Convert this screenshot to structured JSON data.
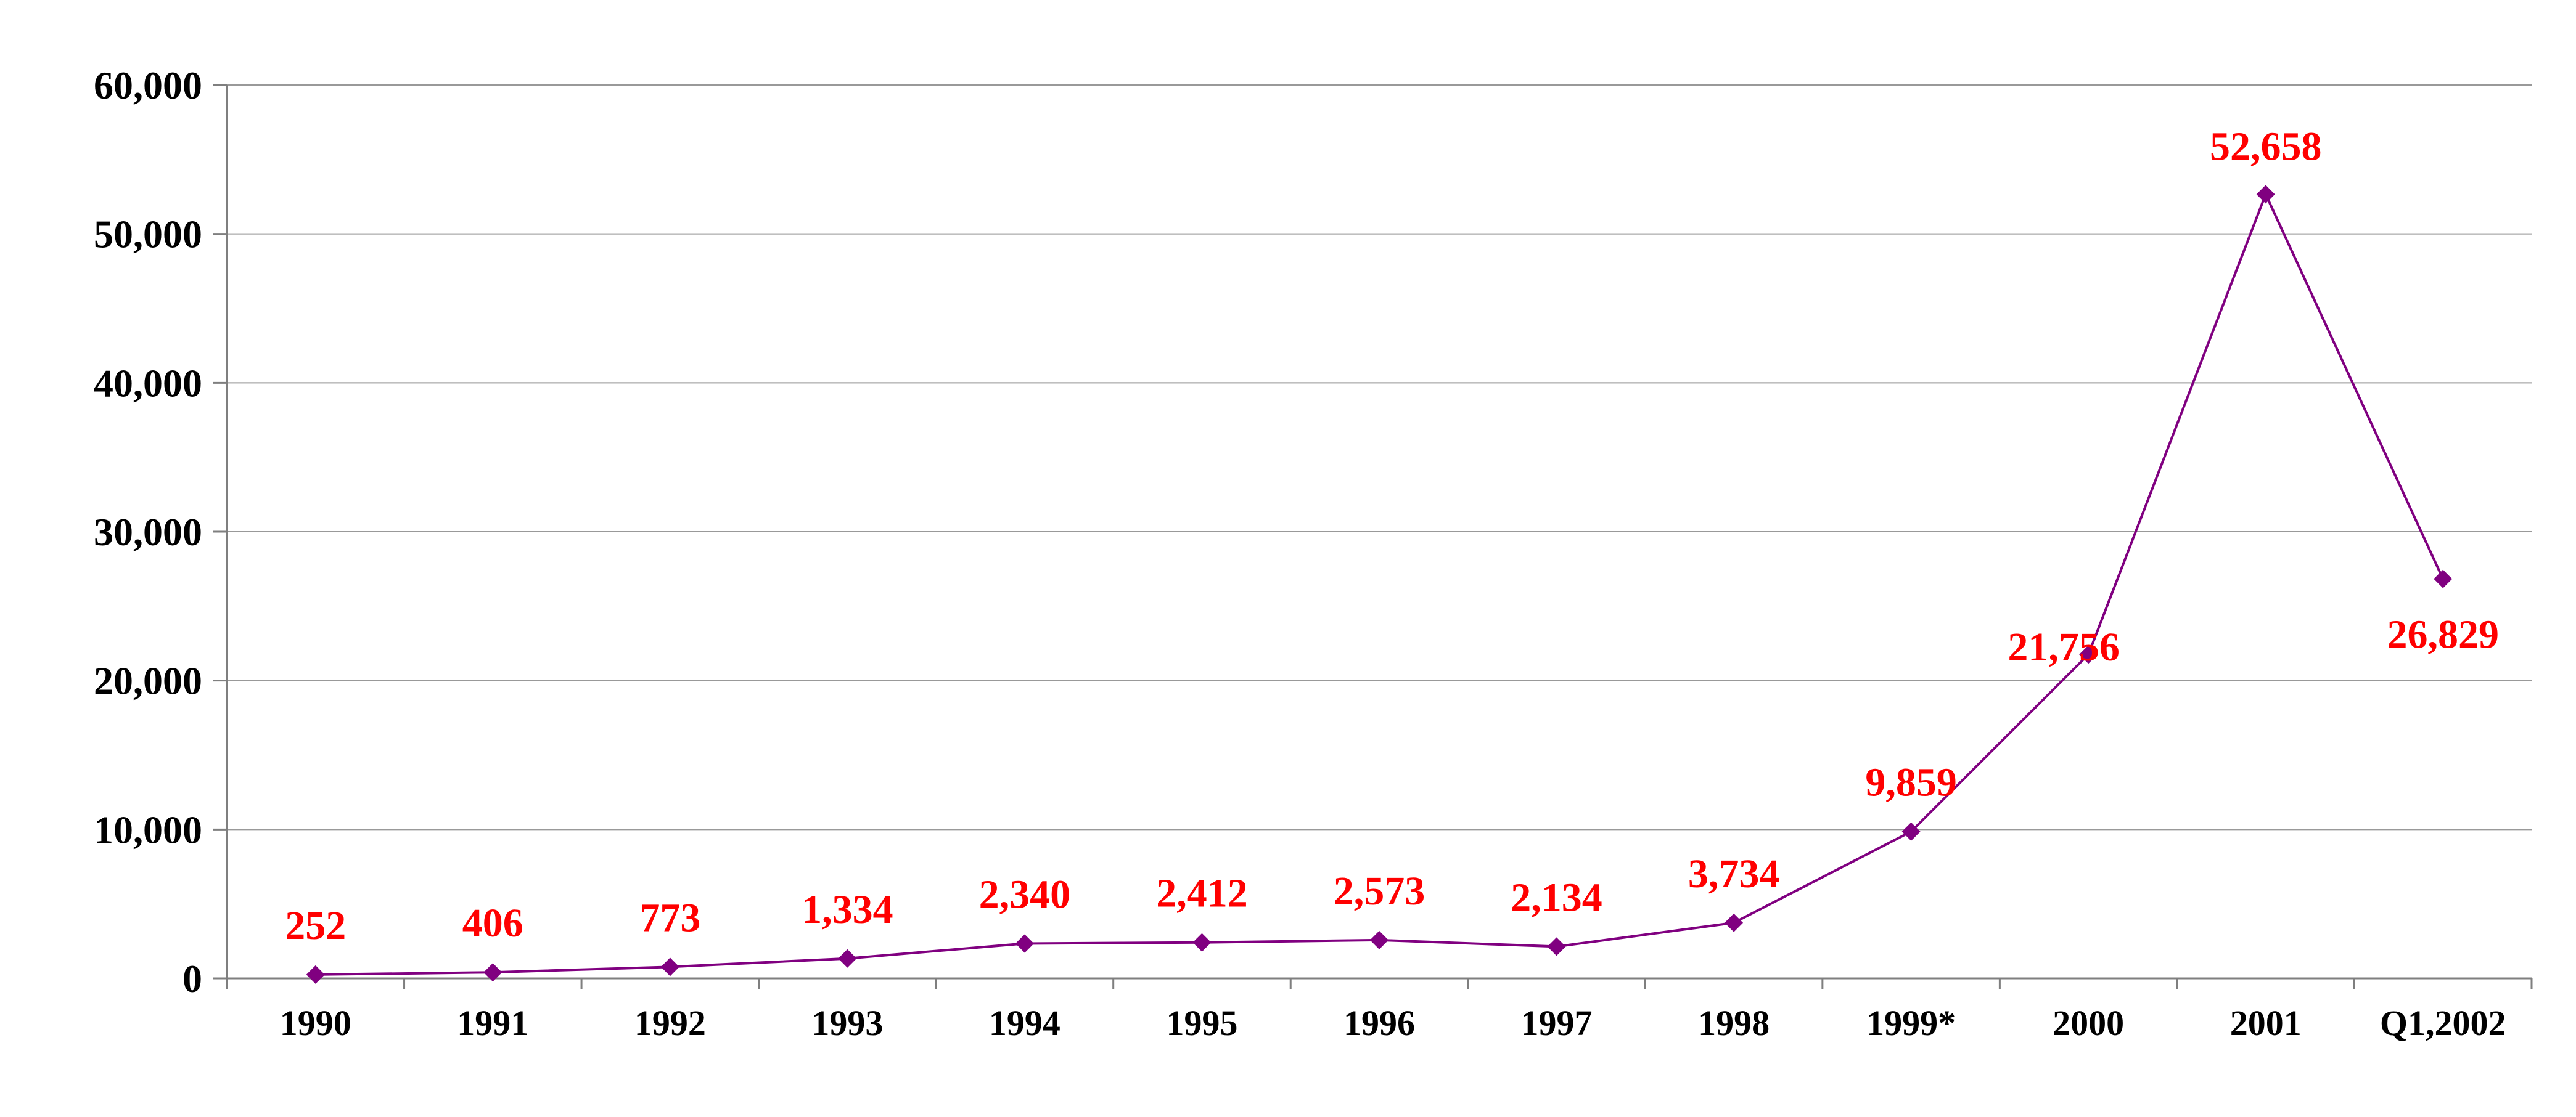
{
  "chart_data": {
    "type": "line",
    "title": "",
    "xlabel": "",
    "ylabel": "",
    "categories": [
      "1990",
      "1991",
      "1992",
      "1993",
      "1994",
      "1995",
      "1996",
      "1997",
      "1998",
      "1999*",
      "2000",
      "2001",
      "Q1,2002"
    ],
    "values": [
      252,
      406,
      773,
      1334,
      2340,
      2412,
      2573,
      2134,
      3734,
      9859,
      21756,
      52658,
      26829
    ],
    "data_labels": [
      "252",
      "406",
      "773",
      "1,334",
      "2,340",
      "2,412",
      "2,573",
      "2,134",
      "3,734",
      "9,859",
      "21,756",
      "52,658",
      "26,829"
    ],
    "y_ticks": [
      "0",
      "10,000",
      "20,000",
      "30,000",
      "40,000",
      "50,000",
      "60,000"
    ],
    "y_tick_values": [
      0,
      10000,
      20000,
      30000,
      40000,
      50000,
      60000
    ],
    "ylim": [
      0,
      60000
    ],
    "grid": true,
    "marker": "diamond",
    "colors": {
      "line": "#800080",
      "marker": "#800080",
      "data_label": "#ff0000",
      "grid": "#999999",
      "axis": "#7f7f7f",
      "text": "#000000"
    }
  }
}
